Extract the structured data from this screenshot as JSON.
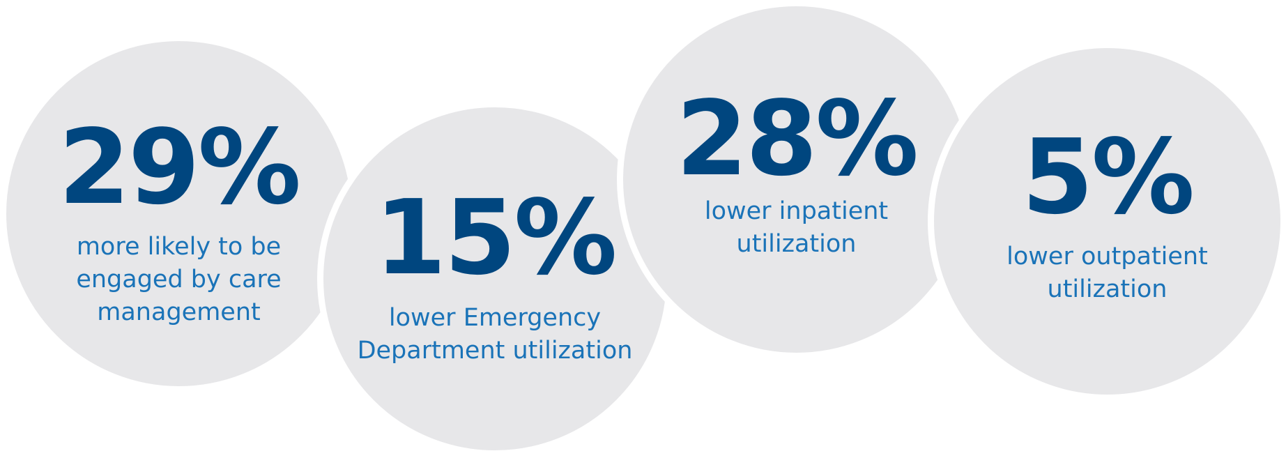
{
  "stats": [
    {
      "value": "29%",
      "caption": [
        "more likely to be",
        "engaged by care",
        "management"
      ]
    },
    {
      "value": "15%",
      "caption": [
        "lower Emergency",
        "Department utilization"
      ]
    },
    {
      "value": "28%",
      "caption": [
        "lower inpatient",
        "utilization"
      ]
    },
    {
      "value": "5%",
      "caption": [
        "lower outpatient",
        "utilization"
      ]
    }
  ],
  "colors": {
    "bubble_fill": "#e7e7e9",
    "value_text": "#00467f",
    "caption_text": "#1a73b8",
    "background": "#ffffff"
  }
}
